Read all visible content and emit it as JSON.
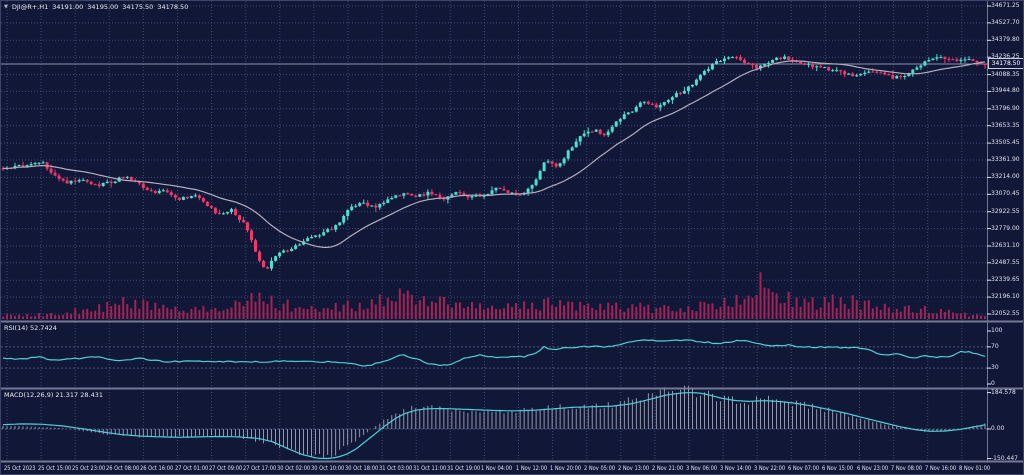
{
  "header": {
    "marker": "▼",
    "symbol_period": "DJI@R+,H1",
    "open": "34191.00",
    "high": "34195.00",
    "low": "34175.50",
    "close": "34178.50"
  },
  "theme": {
    "bg": "#111736",
    "grid": "#3f4870",
    "level_line": "#4c5680",
    "candle_up": "#4be0cf",
    "candle_down": "#f0386c",
    "ma_line": "#b4aec0",
    "volume": "#a22355",
    "indicator_line": "#4dd0d8",
    "histogram": "#c4c8da",
    "axis_text": "#dfe3f0",
    "separator": "#848ba6",
    "axis_separator": "#6f7694",
    "current_price_line": "#8a91ad"
  },
  "chart_data": {
    "type": "candlestick",
    "symbol": "DJI@R+",
    "timeframe": "H1",
    "ohlc_header": {
      "open": 34191.0,
      "high": 34195.0,
      "low": 34175.5,
      "close": 34178.5
    },
    "current_price": 34178.5,
    "price_axis_max": 34671.25,
    "price_axis_min": 32052.55,
    "price_axis_labels": [
      "34671.25",
      "34527.70",
      "34379.80",
      "34236.25",
      "34088.35",
      "33944.80",
      "33796.90",
      "33653.35",
      "33505.45",
      "33361.90",
      "33214.00",
      "33070.45",
      "32922.55",
      "32779.00",
      "32631.10",
      "32487.55",
      "32339.65",
      "32196.10",
      "32052.55"
    ],
    "time_labels": [
      "25 Oct 2023",
      "25 Oct 15:00",
      "25 Oct 23:00",
      "26 Oct 08:00",
      "26 Oct 16:00",
      "27 Oct 01:00",
      "27 Oct 09:00",
      "27 Oct 17:00",
      "30 Oct 02:00",
      "30 Oct 10:00",
      "30 Oct 18:00",
      "31 Oct 03:00",
      "31 Oct 11:00",
      "31 Oct 19:00",
      "1 Nov 04:00",
      "1 Nov 12:00",
      "1 Nov 20:00",
      "2 Nov 05:00",
      "2 Nov 13:00",
      "2 Nov 21:00",
      "3 Nov 06:00",
      "3 Nov 14:00",
      "3 Nov 22:00",
      "6 Nov 07:00",
      "6 Nov 15:00",
      "6 Nov 23:00",
      "7 Nov 08:00",
      "7 Nov 16:00",
      "8 Nov 01:00"
    ],
    "bars": 246,
    "ma_period": 20,
    "close_path": [
      [
        0,
        33290
      ],
      [
        0.02,
        33310
      ],
      [
        0.04,
        33340
      ],
      [
        0.05,
        33240
      ],
      [
        0.065,
        33170
      ],
      [
        0.08,
        33205
      ],
      [
        0.095,
        33145
      ],
      [
        0.11,
        33175
      ],
      [
        0.125,
        33225
      ],
      [
        0.14,
        33150
      ],
      [
        0.155,
        33070
      ],
      [
        0.165,
        33110
      ],
      [
        0.18,
        33030
      ],
      [
        0.195,
        33070
      ],
      [
        0.21,
        32960
      ],
      [
        0.22,
        32900
      ],
      [
        0.232,
        32945
      ],
      [
        0.245,
        32820
      ],
      [
        0.252,
        32700
      ],
      [
        0.258,
        32560
      ],
      [
        0.264,
        32465
      ],
      [
        0.27,
        32430
      ],
      [
        0.276,
        32540
      ],
      [
        0.285,
        32580
      ],
      [
        0.295,
        32620
      ],
      [
        0.31,
        32690
      ],
      [
        0.325,
        32740
      ],
      [
        0.34,
        32800
      ],
      [
        0.352,
        32940
      ],
      [
        0.365,
        33000
      ],
      [
        0.378,
        32960
      ],
      [
        0.39,
        33020
      ],
      [
        0.405,
        33070
      ],
      [
        0.42,
        33050
      ],
      [
        0.435,
        33090
      ],
      [
        0.45,
        33030
      ],
      [
        0.462,
        33080
      ],
      [
        0.475,
        33040
      ],
      [
        0.49,
        33060
      ],
      [
        0.502,
        33130
      ],
      [
        0.515,
        33090
      ],
      [
        0.528,
        33050
      ],
      [
        0.54,
        33150
      ],
      [
        0.552,
        33350
      ],
      [
        0.565,
        33310
      ],
      [
        0.578,
        33460
      ],
      [
        0.59,
        33580
      ],
      [
        0.602,
        33620
      ],
      [
        0.612,
        33560
      ],
      [
        0.625,
        33700
      ],
      [
        0.64,
        33780
      ],
      [
        0.652,
        33860
      ],
      [
        0.665,
        33820
      ],
      [
        0.678,
        33880
      ],
      [
        0.69,
        33940
      ],
      [
        0.702,
        34000
      ],
      [
        0.715,
        34120
      ],
      [
        0.728,
        34200
      ],
      [
        0.742,
        34250
      ],
      [
        0.755,
        34190
      ],
      [
        0.768,
        34150
      ],
      [
        0.782,
        34210
      ],
      [
        0.795,
        34240
      ],
      [
        0.808,
        34190
      ],
      [
        0.82,
        34170
      ],
      [
        0.832,
        34150
      ],
      [
        0.845,
        34120
      ],
      [
        0.858,
        34100
      ],
      [
        0.87,
        34080
      ],
      [
        0.882,
        34120
      ],
      [
        0.895,
        34100
      ],
      [
        0.908,
        34060
      ],
      [
        0.92,
        34090
      ],
      [
        0.932,
        34160
      ],
      [
        0.945,
        34220
      ],
      [
        0.958,
        34230
      ],
      [
        0.97,
        34200
      ],
      [
        0.982,
        34225
      ],
      [
        1,
        34178.5
      ]
    ],
    "volume_path": [
      [
        0,
        0.1
      ],
      [
        0.04,
        0.12
      ],
      [
        0.08,
        0.22
      ],
      [
        0.11,
        0.38
      ],
      [
        0.14,
        0.42
      ],
      [
        0.17,
        0.3
      ],
      [
        0.2,
        0.28
      ],
      [
        0.23,
        0.32
      ],
      [
        0.25,
        0.45
      ],
      [
        0.265,
        0.62
      ],
      [
        0.28,
        0.4
      ],
      [
        0.31,
        0.28
      ],
      [
        0.34,
        0.3
      ],
      [
        0.37,
        0.4
      ],
      [
        0.4,
        0.6
      ],
      [
        0.42,
        0.55
      ],
      [
        0.44,
        0.48
      ],
      [
        0.46,
        0.38
      ],
      [
        0.49,
        0.3
      ],
      [
        0.52,
        0.3
      ],
      [
        0.55,
        0.42
      ],
      [
        0.58,
        0.32
      ],
      [
        0.61,
        0.3
      ],
      [
        0.64,
        0.32
      ],
      [
        0.67,
        0.26
      ],
      [
        0.7,
        0.3
      ],
      [
        0.73,
        0.38
      ],
      [
        0.755,
        0.5
      ],
      [
        0.77,
        0.95
      ],
      [
        0.785,
        0.55
      ],
      [
        0.8,
        0.6
      ],
      [
        0.82,
        0.38
      ],
      [
        0.84,
        0.45
      ],
      [
        0.86,
        0.48
      ],
      [
        0.88,
        0.36
      ],
      [
        0.9,
        0.3
      ],
      [
        0.92,
        0.26
      ],
      [
        0.94,
        0.28
      ],
      [
        0.96,
        0.2
      ],
      [
        0.98,
        0.12
      ],
      [
        1,
        0.08
      ]
    ],
    "rsi": {
      "label": "RSI(14) 52.7424",
      "value": 52.7424,
      "levels": [
        100,
        70,
        30,
        0
      ],
      "path": [
        [
          0,
          49
        ],
        [
          0.02,
          47
        ],
        [
          0.035,
          52
        ],
        [
          0.05,
          45
        ],
        [
          0.07,
          47
        ],
        [
          0.095,
          52
        ],
        [
          0.115,
          44
        ],
        [
          0.14,
          48
        ],
        [
          0.165,
          42
        ],
        [
          0.2,
          43
        ],
        [
          0.23,
          42
        ],
        [
          0.26,
          42
        ],
        [
          0.29,
          43
        ],
        [
          0.32,
          42
        ],
        [
          0.345,
          41
        ],
        [
          0.37,
          34
        ],
        [
          0.39,
          44
        ],
        [
          0.405,
          56
        ],
        [
          0.42,
          48
        ],
        [
          0.435,
          37
        ],
        [
          0.455,
          35
        ],
        [
          0.47,
          49
        ],
        [
          0.485,
          55
        ],
        [
          0.5,
          50
        ],
        [
          0.515,
          52
        ],
        [
          0.53,
          51
        ],
        [
          0.545,
          60
        ],
        [
          0.55,
          73
        ],
        [
          0.558,
          64
        ],
        [
          0.57,
          68
        ],
        [
          0.585,
          70
        ],
        [
          0.6,
          71
        ],
        [
          0.615,
          70
        ],
        [
          0.625,
          72
        ],
        [
          0.64,
          80
        ],
        [
          0.655,
          83
        ],
        [
          0.67,
          82
        ],
        [
          0.685,
          83
        ],
        [
          0.7,
          82
        ],
        [
          0.715,
          79
        ],
        [
          0.73,
          76
        ],
        [
          0.74,
          79
        ],
        [
          0.75,
          82
        ],
        [
          0.76,
          80
        ],
        [
          0.775,
          73
        ],
        [
          0.79,
          72
        ],
        [
          0.8,
          74
        ],
        [
          0.81,
          70
        ],
        [
          0.825,
          69
        ],
        [
          0.84,
          70
        ],
        [
          0.855,
          69
        ],
        [
          0.87,
          68
        ],
        [
          0.88,
          65
        ],
        [
          0.89,
          58
        ],
        [
          0.9,
          55
        ],
        [
          0.91,
          57
        ],
        [
          0.92,
          52
        ],
        [
          0.93,
          50
        ],
        [
          0.94,
          53
        ],
        [
          0.95,
          50
        ],
        [
          0.955,
          52
        ],
        [
          0.965,
          51
        ],
        [
          0.975,
          62
        ],
        [
          0.985,
          60
        ],
        [
          0.995,
          55
        ],
        [
          1,
          53
        ]
      ]
    },
    "macd": {
      "label": "MACD(12,26,9) 21.317 28.431",
      "values": [
        21.317,
        28.431
      ],
      "axis_labels": [
        "184.578",
        "0.00",
        "-150.447"
      ],
      "signal_path": [
        [
          0,
          22
        ],
        [
          0.02,
          26
        ],
        [
          0.04,
          24
        ],
        [
          0.06,
          16
        ],
        [
          0.08,
          2
        ],
        [
          0.1,
          -14
        ],
        [
          0.12,
          -28
        ],
        [
          0.14,
          -36
        ],
        [
          0.16,
          -40
        ],
        [
          0.18,
          -42
        ],
        [
          0.2,
          -40
        ],
        [
          0.22,
          -38
        ],
        [
          0.24,
          -40
        ],
        [
          0.26,
          -48
        ],
        [
          0.275,
          -65
        ],
        [
          0.29,
          -100
        ],
        [
          0.305,
          -130
        ],
        [
          0.32,
          -148
        ],
        [
          0.33,
          -150
        ],
        [
          0.34,
          -144
        ],
        [
          0.35,
          -128
        ],
        [
          0.36,
          -100
        ],
        [
          0.37,
          -60
        ],
        [
          0.38,
          -20
        ],
        [
          0.39,
          20
        ],
        [
          0.4,
          55
        ],
        [
          0.41,
          80
        ],
        [
          0.42,
          95
        ],
        [
          0.43,
          102
        ],
        [
          0.445,
          104
        ],
        [
          0.46,
          102
        ],
        [
          0.48,
          98
        ],
        [
          0.5,
          94
        ],
        [
          0.52,
          92
        ],
        [
          0.54,
          95
        ],
        [
          0.56,
          102
        ],
        [
          0.58,
          110
        ],
        [
          0.6,
          113
        ],
        [
          0.62,
          116
        ],
        [
          0.64,
          128
        ],
        [
          0.66,
          152
        ],
        [
          0.675,
          172
        ],
        [
          0.69,
          182
        ],
        [
          0.7,
          185
        ],
        [
          0.71,
          182
        ],
        [
          0.72,
          172
        ],
        [
          0.73,
          158
        ],
        [
          0.745,
          145
        ],
        [
          0.76,
          140
        ],
        [
          0.775,
          144
        ],
        [
          0.79,
          140
        ],
        [
          0.805,
          132
        ],
        [
          0.82,
          120
        ],
        [
          0.84,
          100
        ],
        [
          0.86,
          78
        ],
        [
          0.88,
          52
        ],
        [
          0.9,
          28
        ],
        [
          0.915,
          10
        ],
        [
          0.93,
          -4
        ],
        [
          0.945,
          -12
        ],
        [
          0.96,
          -10
        ],
        [
          0.975,
          -2
        ],
        [
          0.99,
          12
        ],
        [
          1,
          21
        ]
      ],
      "hist_path": [
        [
          0,
          16
        ],
        [
          0.03,
          12
        ],
        [
          0.06,
          4
        ],
        [
          0.09,
          -16
        ],
        [
          0.12,
          -34
        ],
        [
          0.15,
          -42
        ],
        [
          0.18,
          -40
        ],
        [
          0.21,
          -36
        ],
        [
          0.24,
          -42
        ],
        [
          0.27,
          -70
        ],
        [
          0.29,
          -105
        ],
        [
          0.31,
          -135
        ],
        [
          0.325,
          -148
        ],
        [
          0.34,
          -120
        ],
        [
          0.355,
          -75
        ],
        [
          0.37,
          -20
        ],
        [
          0.385,
          35
        ],
        [
          0.4,
          80
        ],
        [
          0.415,
          105
        ],
        [
          0.43,
          112
        ],
        [
          0.45,
          100
        ],
        [
          0.47,
          92
        ],
        [
          0.5,
          88
        ],
        [
          0.53,
          96
        ],
        [
          0.56,
          108
        ],
        [
          0.59,
          115
        ],
        [
          0.62,
          122
        ],
        [
          0.65,
          160
        ],
        [
          0.67,
          185
        ],
        [
          0.69,
          196
        ],
        [
          0.705,
          190
        ],
        [
          0.72,
          170
        ],
        [
          0.74,
          150
        ],
        [
          0.76,
          142
        ],
        [
          0.78,
          148
        ],
        [
          0.8,
          138
        ],
        [
          0.82,
          118
        ],
        [
          0.84,
          98
        ],
        [
          0.86,
          72
        ],
        [
          0.88,
          45
        ],
        [
          0.9,
          22
        ],
        [
          0.92,
          2
        ],
        [
          0.94,
          -14
        ],
        [
          0.96,
          -10
        ],
        [
          0.98,
          6
        ],
        [
          1,
          28
        ]
      ]
    }
  }
}
